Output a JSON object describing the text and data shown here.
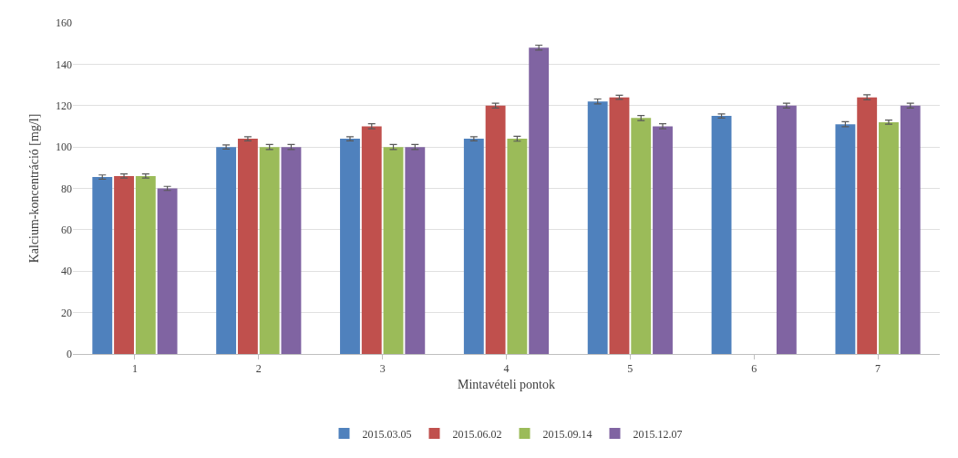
{
  "chart_data": {
    "type": "bar",
    "xlabel": "Mintavételi pontok",
    "ylabel": "Kalcium-koncentráció [mg/l]",
    "categories": [
      "1",
      "2",
      "3",
      "4",
      "5",
      "6",
      "7"
    ],
    "ylim": [
      0,
      160
    ],
    "yticks": [
      0,
      20,
      40,
      60,
      80,
      100,
      120,
      140,
      160
    ],
    "grid": "y",
    "legend": "bottom",
    "series": [
      {
        "name": "2015.03.05",
        "color": "#4f81bd",
        "values": [
          85.5,
          100,
          104,
          104,
          122,
          115,
          111
        ],
        "errors": [
          1,
          1,
          1,
          1,
          1.2,
          1,
          1.2
        ]
      },
      {
        "name": "2015.06.02",
        "color": "#c0504d",
        "values": [
          86,
          104,
          110,
          120,
          124,
          null,
          124
        ],
        "errors": [
          1,
          1,
          1.2,
          1.2,
          1,
          null,
          1.2
        ]
      },
      {
        "name": "2015.09.14",
        "color": "#9bbb59",
        "values": [
          86,
          100,
          100,
          104,
          114,
          null,
          112
        ],
        "errors": [
          1,
          1.2,
          1.2,
          1.2,
          1.2,
          null,
          1
        ]
      },
      {
        "name": "2015.12.07",
        "color": "#8064a2",
        "values": [
          80,
          100,
          100,
          148,
          110,
          120,
          120
        ],
        "errors": [
          1,
          1.2,
          1.2,
          1.2,
          1.2,
          1.2,
          1.2
        ]
      }
    ]
  }
}
